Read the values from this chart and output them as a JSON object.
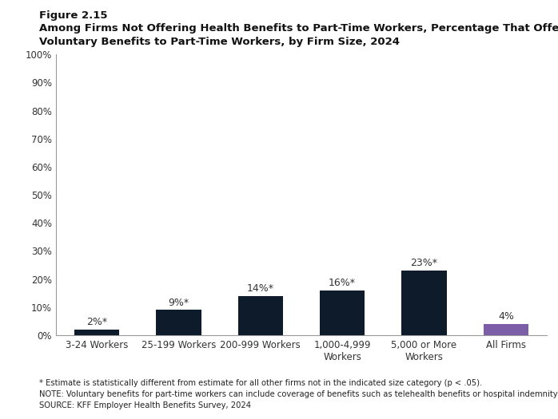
{
  "figure_label": "Figure 2.15",
  "title_line1": "Among Firms Not Offering Health Benefits to Part-Time Workers, Percentage That Offer",
  "title_line2": "Voluntary Benefits to Part-Time Workers, by Firm Size, 2024",
  "categories": [
    "3-24 Workers",
    "25-199 Workers",
    "200-999 Workers",
    "1,000-4,999\nWorkers",
    "5,000 or More\nWorkers",
    "All Firms"
  ],
  "values": [
    2,
    9,
    14,
    16,
    23,
    4
  ],
  "bar_colors": [
    "#0d1b2a",
    "#0d1b2a",
    "#0d1b2a",
    "#0d1b2a",
    "#0d1b2a",
    "#7b5ea7"
  ],
  "labels": [
    "2%*",
    "9%*",
    "14%*",
    "16%*",
    "23%*",
    "4%"
  ],
  "ylim": [
    0,
    100
  ],
  "yticks": [
    0,
    10,
    20,
    30,
    40,
    50,
    60,
    70,
    80,
    90,
    100
  ],
  "ytick_labels": [
    "0%",
    "10%",
    "20%",
    "30%",
    "40%",
    "50%",
    "60%",
    "70%",
    "80%",
    "90%",
    "100%"
  ],
  "footnote1": "* Estimate is statistically different from estimate for all other firms not in the indicated size category (p < .05).",
  "footnote2": "NOTE: Voluntary benefits for part-time workers can include coverage of benefits such as telehealth benefits or hospital indemnity insurance.",
  "footnote3": "SOURCE: KFF Employer Health Benefits Survey, 2024",
  "background_color": "#ffffff"
}
